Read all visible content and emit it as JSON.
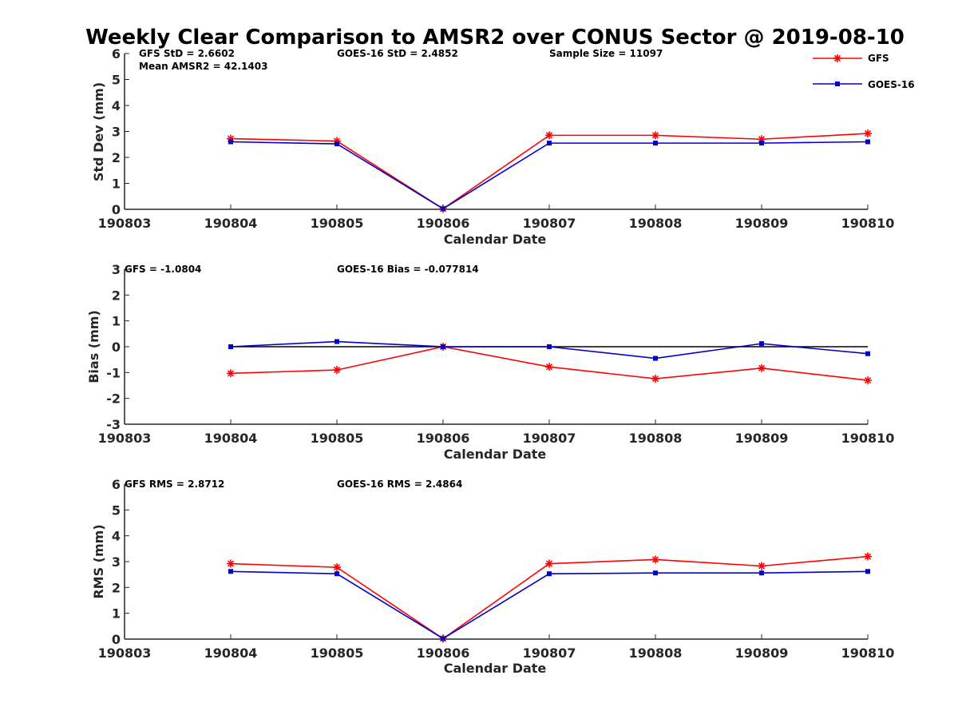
{
  "title": "Weekly Clear Comparison to AMSR2 over CONUS Sector @ 2019-08-10",
  "colors": {
    "gfs": "#ff0000",
    "goes": "#0000cc",
    "axis": "#262626",
    "zero_line": "#000000"
  },
  "legend": {
    "placement": "top-right",
    "gfs_label": "GFS",
    "goes_label": "GOES-16"
  },
  "chart_data": [
    {
      "type": "line",
      "panel": "stddev",
      "xlabel": "Calendar Date",
      "ylabel": "Std Dev (mm)",
      "ylim": [
        0,
        6
      ],
      "yticks": [
        "0",
        "1",
        "2",
        "3",
        "4",
        "5",
        "6"
      ],
      "x": [
        "190803",
        "190804",
        "190805",
        "190806",
        "190807",
        "190808",
        "190809",
        "190810"
      ],
      "series": [
        {
          "name": "GFS",
          "marker": "asterisk",
          "values": [
            null,
            2.72,
            2.63,
            0.02,
            2.85,
            2.85,
            2.7,
            2.92
          ]
        },
        {
          "name": "GOES-16",
          "marker": "square",
          "values": [
            null,
            2.6,
            2.52,
            0.02,
            2.55,
            2.55,
            2.55,
            2.6
          ]
        }
      ],
      "annotations": {
        "gfs_text": "GFS StD = 2.6602",
        "goes_text": "GOES-16 StD = 2.4852",
        "sample_text": "Sample Size = 11097",
        "mean_text": "Mean AMSR2 = 42.1403"
      }
    },
    {
      "type": "line",
      "panel": "bias",
      "xlabel": "Calendar Date",
      "ylabel": "Bias (mm)",
      "ylim": [
        -3,
        3
      ],
      "yticks": [
        "-3",
        "-2",
        "-1",
        "0",
        "1",
        "2",
        "3"
      ],
      "x": [
        "190803",
        "190804",
        "190805",
        "190806",
        "190807",
        "190808",
        "190809",
        "190810"
      ],
      "zero_line": true,
      "series": [
        {
          "name": "GFS",
          "marker": "asterisk",
          "values": [
            null,
            -1.03,
            -0.9,
            0.0,
            -0.78,
            -1.24,
            -0.83,
            -1.3
          ]
        },
        {
          "name": "GOES-16",
          "marker": "square",
          "values": [
            null,
            0.0,
            0.2,
            0.0,
            0.0,
            -0.45,
            0.12,
            -0.27
          ]
        }
      ],
      "annotations": {
        "gfs_text": "GFS = -1.0804",
        "goes_text": "GOES-16 Bias  = -0.077814"
      }
    },
    {
      "type": "line",
      "panel": "rms",
      "xlabel": "Calendar Date",
      "ylabel": "RMS (mm)",
      "ylim": [
        0,
        6
      ],
      "yticks": [
        "0",
        "1",
        "2",
        "3",
        "4",
        "5",
        "6"
      ],
      "x": [
        "190803",
        "190804",
        "190805",
        "190806",
        "190807",
        "190808",
        "190809",
        "190810"
      ],
      "series": [
        {
          "name": "GFS",
          "marker": "asterisk",
          "values": [
            null,
            2.92,
            2.78,
            0.02,
            2.92,
            3.08,
            2.83,
            3.2
          ]
        },
        {
          "name": "GOES-16",
          "marker": "square",
          "values": [
            null,
            2.62,
            2.53,
            0.02,
            2.53,
            2.56,
            2.56,
            2.62
          ]
        }
      ],
      "annotations": {
        "gfs_text": "GFS RMS = 2.8712",
        "goes_text": "GOES-16 RMS = 2.4864"
      }
    }
  ]
}
